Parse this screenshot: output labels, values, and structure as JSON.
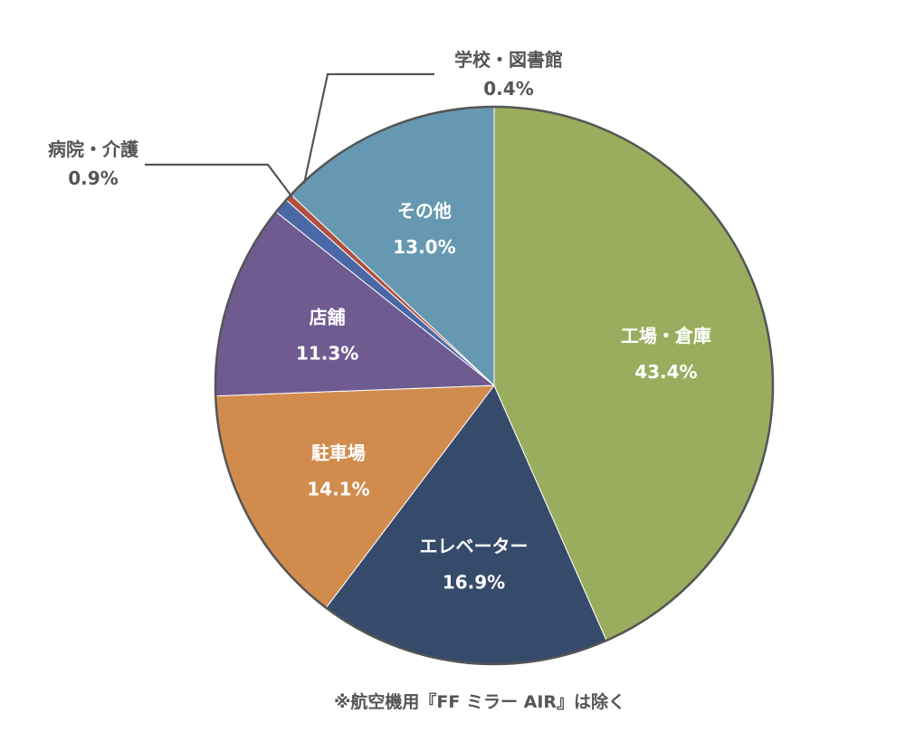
{
  "chart_data": {
    "type": "pie",
    "slices": [
      {
        "name": "工場・倉庫",
        "value": 43.4,
        "label": "43.4%",
        "color": "#9aad5e",
        "label_style": "inside"
      },
      {
        "name": "エレベーター",
        "value": 16.9,
        "label": "16.9%",
        "color": "#364a6b",
        "label_style": "inside"
      },
      {
        "name": "駐車場",
        "value": 14.1,
        "label": "14.1%",
        "color": "#d18c4d",
        "label_style": "inside"
      },
      {
        "name": "店舗",
        "value": 11.3,
        "label": "11.3%",
        "color": "#6f5b90",
        "label_style": "inside"
      },
      {
        "name": "病院・介護",
        "value": 0.9,
        "label": "0.9%",
        "color": "#4a68a6",
        "label_style": "outside"
      },
      {
        "name": "学校・図書館",
        "value": 0.4,
        "label": "0.4%",
        "color": "#b14f3f",
        "label_style": "outside"
      },
      {
        "name": "その他",
        "value": 13.0,
        "label": "13.0%",
        "color": "#6699b1",
        "label_style": "inside"
      }
    ],
    "start": "12 o'clock",
    "direction": "clockwise",
    "legend": "none",
    "footnote": "※航空機用『FF ミラー AIR』は除く"
  }
}
